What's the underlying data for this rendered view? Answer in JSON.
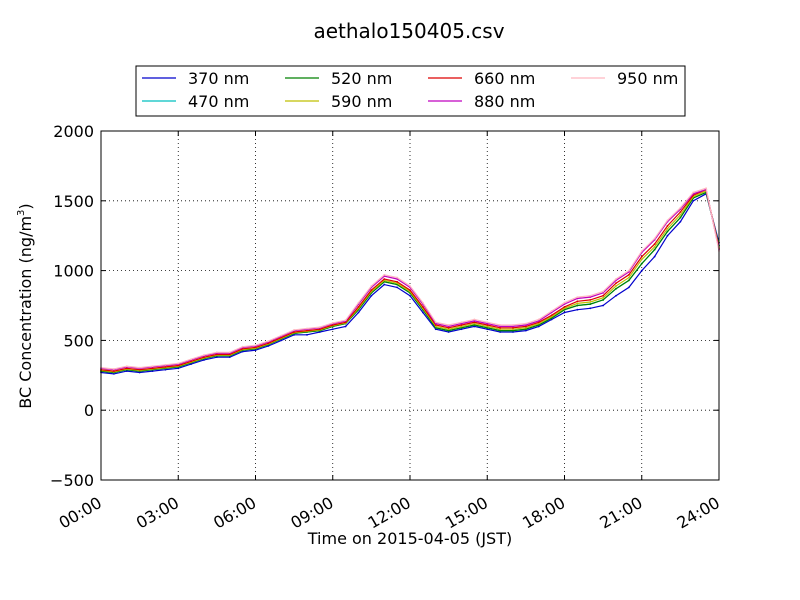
{
  "chart_data": {
    "type": "line",
    "title": "aethalo150405.csv",
    "xlabel": "Time on 2015-04-05 (JST)",
    "ylabel_main": "BC Concentration (ng/m",
    "ylabel_sup": "3",
    "ylabel_close": ")",
    "xlim": [
      "00:00",
      "24:00"
    ],
    "ylim": [
      -500,
      2000
    ],
    "x_ticks": [
      "00:00",
      "03:00",
      "06:00",
      "09:00",
      "12:00",
      "15:00",
      "18:00",
      "21:00",
      "24:00"
    ],
    "y_ticks": [
      "−500",
      "0",
      "500",
      "1000",
      "1500",
      "2000"
    ],
    "grid": true,
    "legend_position": "top-center",
    "x": [
      "00:00",
      "00:30",
      "01:00",
      "01:30",
      "02:00",
      "02:30",
      "03:00",
      "03:30",
      "04:00",
      "04:30",
      "05:00",
      "05:30",
      "06:00",
      "06:30",
      "07:00",
      "07:30",
      "08:00",
      "08:30",
      "09:00",
      "09:30",
      "10:00",
      "10:30",
      "11:00",
      "11:30",
      "12:00",
      "12:30",
      "13:00",
      "13:30",
      "14:00",
      "14:30",
      "15:00",
      "15:30",
      "16:00",
      "16:30",
      "17:00",
      "17:30",
      "18:00",
      "18:30",
      "19:00",
      "19:30",
      "20:00",
      "20:30",
      "21:00",
      "21:30",
      "22:00",
      "22:30",
      "23:00",
      "23:30",
      "24:00"
    ],
    "series": [
      {
        "name": "370 nm",
        "color": "#0000cc",
        "values": [
          270,
          260,
          280,
          270,
          280,
          290,
          300,
          330,
          360,
          380,
          380,
          420,
          430,
          460,
          500,
          540,
          540,
          560,
          580,
          600,
          700,
          820,
          900,
          880,
          820,
          700,
          580,
          560,
          580,
          600,
          580,
          560,
          560,
          570,
          600,
          650,
          700,
          720,
          730,
          750,
          820,
          880,
          1000,
          1100,
          1250,
          1350,
          1500,
          1550,
          1200
        ]
      },
      {
        "name": "470 nm",
        "color": "#00bfbf",
        "values": [
          280,
          270,
          290,
          280,
          290,
          300,
          310,
          340,
          370,
          390,
          390,
          430,
          440,
          470,
          510,
          550,
          560,
          570,
          600,
          620,
          720,
          840,
          920,
          900,
          840,
          720,
          590,
          570,
          590,
          610,
          590,
          570,
          570,
          580,
          610,
          660,
          720,
          750,
          760,
          790,
          870,
          930,
          1050,
          1150,
          1280,
          1380,
          1520,
          1560,
          1180
        ]
      },
      {
        "name": "520 nm",
        "color": "#008000",
        "values": [
          280,
          270,
          290,
          280,
          290,
          300,
          310,
          340,
          370,
          390,
          390,
          430,
          440,
          470,
          510,
          550,
          560,
          570,
          600,
          620,
          720,
          840,
          920,
          900,
          840,
          720,
          590,
          570,
          590,
          610,
          590,
          570,
          570,
          580,
          610,
          660,
          720,
          750,
          760,
          790,
          870,
          930,
          1050,
          1150,
          1280,
          1380,
          1520,
          1560,
          1180
        ]
      },
      {
        "name": "590 nm",
        "color": "#bfbf00",
        "values": [
          285,
          275,
          295,
          285,
          295,
          305,
          315,
          345,
          375,
          395,
          395,
          435,
          445,
          475,
          515,
          555,
          565,
          575,
          605,
          625,
          730,
          850,
          930,
          910,
          850,
          730,
          600,
          580,
          600,
          620,
          600,
          580,
          580,
          590,
          620,
          670,
          730,
          765,
          775,
          805,
          890,
          950,
          1080,
          1170,
          1300,
          1400,
          1530,
          1570,
          1170
        ]
      },
      {
        "name": "660 nm",
        "color": "#dd0000",
        "values": [
          290,
          280,
          300,
          290,
          300,
          310,
          320,
          350,
          380,
          400,
          400,
          440,
          450,
          480,
          520,
          560,
          570,
          580,
          610,
          630,
          740,
          860,
          940,
          920,
          860,
          740,
          610,
          590,
          610,
          630,
          610,
          590,
          590,
          600,
          630,
          680,
          740,
          780,
          790,
          820,
          910,
          970,
          1100,
          1190,
          1320,
          1420,
          1540,
          1580,
          1160
        ]
      },
      {
        "name": "880 nm",
        "color": "#bf00bf",
        "values": [
          300,
          290,
          310,
          300,
          310,
          320,
          330,
          360,
          390,
          410,
          410,
          450,
          460,
          490,
          530,
          570,
          580,
          590,
          620,
          640,
          760,
          880,
          960,
          940,
          880,
          760,
          620,
          600,
          620,
          640,
          620,
          600,
          600,
          610,
          640,
          700,
          760,
          800,
          810,
          840,
          930,
          990,
          1130,
          1220,
          1350,
          1440,
          1550,
          1580,
          1150
        ]
      },
      {
        "name": "950 nm",
        "color": "#ffb6c1",
        "values": [
          305,
          295,
          315,
          305,
          315,
          325,
          335,
          365,
          395,
          415,
          415,
          455,
          465,
          495,
          535,
          575,
          585,
          595,
          625,
          645,
          770,
          890,
          970,
          950,
          890,
          770,
          630,
          610,
          630,
          650,
          630,
          610,
          610,
          620,
          650,
          710,
          770,
          810,
          820,
          850,
          940,
          1000,
          1140,
          1230,
          1360,
          1450,
          1560,
          1590,
          1140
        ]
      }
    ]
  }
}
